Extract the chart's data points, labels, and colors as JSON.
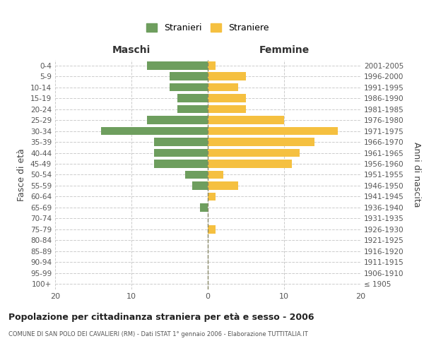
{
  "age_groups": [
    "100+",
    "95-99",
    "90-94",
    "85-89",
    "80-84",
    "75-79",
    "70-74",
    "65-69",
    "60-64",
    "55-59",
    "50-54",
    "45-49",
    "40-44",
    "35-39",
    "30-34",
    "25-29",
    "20-24",
    "15-19",
    "10-14",
    "5-9",
    "0-4"
  ],
  "birth_years": [
    "≤ 1905",
    "1906-1910",
    "1911-1915",
    "1916-1920",
    "1921-1925",
    "1926-1930",
    "1931-1935",
    "1936-1940",
    "1941-1945",
    "1946-1950",
    "1951-1955",
    "1956-1960",
    "1961-1965",
    "1966-1970",
    "1971-1975",
    "1976-1980",
    "1981-1985",
    "1986-1990",
    "1991-1995",
    "1996-2000",
    "2001-2005"
  ],
  "males": [
    0,
    0,
    0,
    0,
    0,
    0,
    0,
    1,
    0,
    2,
    3,
    7,
    7,
    7,
    14,
    8,
    4,
    4,
    5,
    5,
    8
  ],
  "females": [
    0,
    0,
    0,
    0,
    0,
    1,
    0,
    0,
    1,
    4,
    2,
    11,
    12,
    14,
    17,
    10,
    5,
    5,
    4,
    5,
    1
  ],
  "male_color": "#6e9e5e",
  "female_color": "#f5c040",
  "title": "Popolazione per cittadinanza straniera per età e sesso - 2006",
  "subtitle": "COMUNE DI SAN POLO DEI CAVALIERI (RM) - Dati ISTAT 1° gennaio 2006 - Elaborazione TUTTITALIA.IT",
  "xlabel_left": "Maschi",
  "xlabel_right": "Femmine",
  "ylabel_left": "Fasce di età",
  "ylabel_right": "Anni di nascita",
  "legend_males": "Stranieri",
  "legend_females": "Straniere",
  "xlim": 20,
  "background_color": "#ffffff",
  "grid_color": "#cccccc"
}
